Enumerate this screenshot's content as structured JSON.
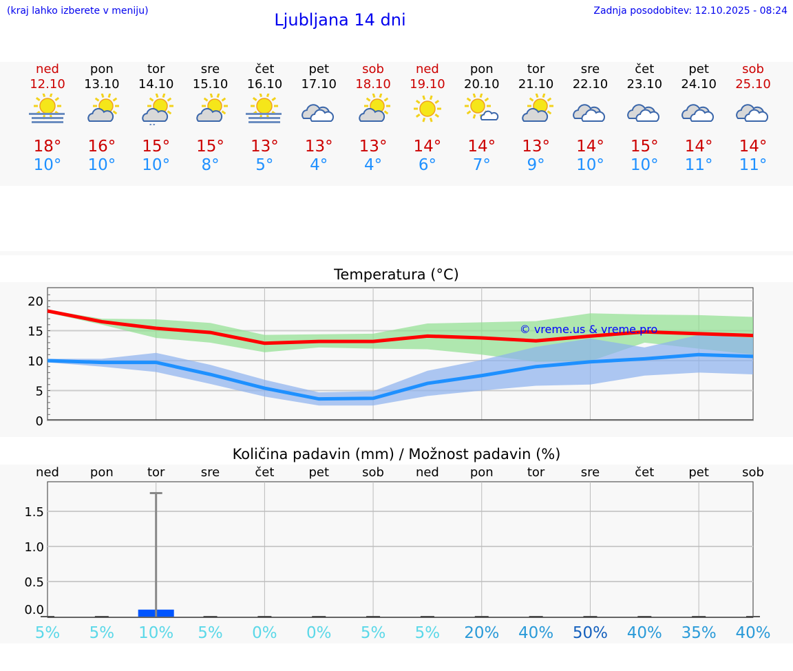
{
  "header": {
    "hint": "(kraj lahko izberete v meniju)",
    "title": "Ljubljana 14 dni",
    "updated": "Zadnja posodobitev: 12.10.2025 - 08:24"
  },
  "colors": {
    "max": "#cc0000",
    "min": "#1e90ff",
    "weekend": "#cc0000",
    "link": "#0000ee"
  },
  "days": [
    {
      "name": "ned",
      "date": "12.10",
      "weekend": true,
      "icon": "fog-sun",
      "max": "18°",
      "min": "10°"
    },
    {
      "name": "pon",
      "date": "13.10",
      "weekend": false,
      "icon": "partly-cloudy",
      "max": "16°",
      "min": "10°"
    },
    {
      "name": "tor",
      "date": "14.10",
      "weekend": false,
      "icon": "partly-cloudy-rain",
      "max": "15°",
      "min": "10°"
    },
    {
      "name": "sre",
      "date": "15.10",
      "weekend": false,
      "icon": "partly-cloudy",
      "max": "15°",
      "min": "8°"
    },
    {
      "name": "čet",
      "date": "16.10",
      "weekend": false,
      "icon": "fog-sun",
      "max": "13°",
      "min": "5°"
    },
    {
      "name": "pet",
      "date": "17.10",
      "weekend": false,
      "icon": "cloudy",
      "max": "13°",
      "min": "4°"
    },
    {
      "name": "sob",
      "date": "18.10",
      "weekend": true,
      "icon": "partly-cloudy",
      "max": "13°",
      "min": "4°"
    },
    {
      "name": "ned",
      "date": "19.10",
      "weekend": true,
      "icon": "sunny",
      "max": "14°",
      "min": "6°"
    },
    {
      "name": "pon",
      "date": "20.10",
      "weekend": false,
      "icon": "sun-small-cloud",
      "max": "14°",
      "min": "7°"
    },
    {
      "name": "tor",
      "date": "21.10",
      "weekend": false,
      "icon": "partly-cloudy",
      "max": "13°",
      "min": "9°"
    },
    {
      "name": "sre",
      "date": "22.10",
      "weekend": false,
      "icon": "cloudy",
      "max": "14°",
      "min": "10°"
    },
    {
      "name": "čet",
      "date": "23.10",
      "weekend": false,
      "icon": "cloudy",
      "max": "15°",
      "min": "10°"
    },
    {
      "name": "pet",
      "date": "24.10",
      "weekend": false,
      "icon": "cloudy",
      "max": "14°",
      "min": "11°"
    },
    {
      "name": "sob",
      "date": "25.10",
      "weekend": true,
      "icon": "cloudy",
      "max": "14°",
      "min": "11°"
    }
  ],
  "chart_data": [
    {
      "type": "line",
      "title": "Temperatura (°C)",
      "ylim": [
        0,
        22
      ],
      "yticks": [
        "0",
        "5",
        "10",
        "15",
        "20"
      ],
      "grid": true,
      "watermark": "© vreme.us & vreme.pro",
      "x": [
        "ned",
        "pon",
        "tor",
        "sre",
        "čet",
        "pet",
        "sob",
        "ned",
        "pon",
        "tor",
        "sre",
        "čet",
        "pet",
        "sob"
      ],
      "series": [
        {
          "role": "max",
          "color": "#ff0000",
          "values": [
            18.3,
            16.5,
            15.4,
            14.7,
            12.9,
            13.2,
            13.2,
            14.1,
            13.8,
            13.3,
            14.1,
            14.8,
            14.5,
            14.2
          ],
          "band_color": "#90e090",
          "band_high": [
            18.5,
            17.0,
            16.9,
            16.3,
            14.3,
            14.4,
            14.5,
            16.2,
            16.4,
            16.6,
            17.9,
            17.7,
            17.6,
            17.3
          ],
          "band_low": [
            18.0,
            16.0,
            13.8,
            13.0,
            11.4,
            12.2,
            12.0,
            11.9,
            11.0,
            9.8,
            9.9,
            13.0,
            12.0,
            11.0
          ]
        },
        {
          "role": "min",
          "color": "#1e90ff",
          "values": [
            10.0,
            9.7,
            9.7,
            7.7,
            5.4,
            3.6,
            3.7,
            6.2,
            7.5,
            9.0,
            9.8,
            10.3,
            11.0,
            10.7
          ],
          "band_color": "#8cb0ee",
          "band_high": [
            10.3,
            10.3,
            11.3,
            9.3,
            6.8,
            4.7,
            4.9,
            8.3,
            10.1,
            12.3,
            13.7,
            12.2,
            14.3,
            13.8
          ],
          "band_low": [
            9.7,
            9.0,
            8.1,
            6.1,
            4.0,
            2.5,
            2.5,
            4.1,
            5.0,
            5.8,
            6.0,
            7.5,
            8.0,
            7.7
          ]
        }
      ]
    },
    {
      "type": "bar",
      "title": "Količina padavin (mm) / Možnost padavin (%)",
      "ylim": [
        0,
        1.9
      ],
      "yticks": [
        "0.0",
        "0.5",
        "1.0",
        "1.5"
      ],
      "grid": true,
      "categories": [
        "ned",
        "pon",
        "tor",
        "sre",
        "čet",
        "pet",
        "sob",
        "ned",
        "pon",
        "tor",
        "sre",
        "čet",
        "pet",
        "sob"
      ],
      "values": [
        0,
        0,
        0.1,
        0,
        0,
        0,
        0,
        0,
        0,
        0,
        0,
        0,
        0,
        0
      ],
      "error_high": [
        0,
        0,
        1.76,
        0,
        0,
        0,
        0,
        0,
        0,
        0,
        0,
        0,
        0,
        0
      ],
      "bar_color": "#0055ff",
      "probability": [
        "5%",
        "5%",
        "10%",
        "5%",
        "0%",
        "0%",
        "5%",
        "5%",
        "20%",
        "40%",
        "50%",
        "40%",
        "35%",
        "40%"
      ],
      "probability_colors": [
        "#5bd8e8",
        "#5bd8e8",
        "#5bd8e8",
        "#5bd8e8",
        "#5bd8e8",
        "#5bd8e8",
        "#5bd8e8",
        "#5bd8e8",
        "#2a9ad8",
        "#2a9ad8",
        "#1560bd",
        "#2a9ad8",
        "#2a9ad8",
        "#2a9ad8"
      ]
    }
  ]
}
